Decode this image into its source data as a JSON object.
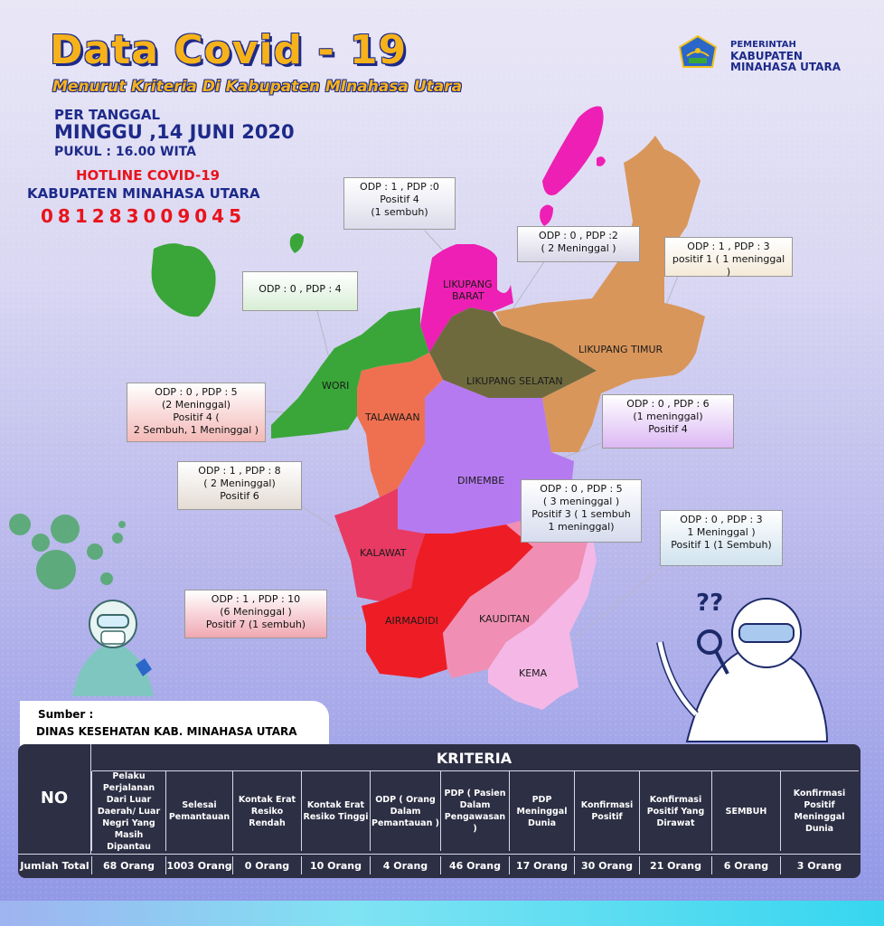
{
  "header": {
    "title": "Data Covid - 19",
    "subtitle": "Menurut Kriteria Di Kabupaten MInahasa Utara",
    "per_tanggal": "PER TANGGAL",
    "tanggal": "MINGGU ,14 JUNI 2020",
    "pukul": "PUKUL : 16.00 WITA",
    "hotline_label": "HOTLINE COVID-19",
    "hotline_org": "KABUPATEN MINAHASA UTARA",
    "hotline_number": "081283009045"
  },
  "logo": {
    "line1": "PEMERINTAH",
    "line2": "KABUPATEN",
    "line3": "MINAHASA UTARA"
  },
  "regions": [
    {
      "name": "LIKUPANG BARAT",
      "color": "#ee1fb4"
    },
    {
      "name": "LIKUPANG SELATAN",
      "color": "#6f6a3e"
    },
    {
      "name": "LIKUPANG TIMUR",
      "color": "#d9965a"
    },
    {
      "name": "WORI",
      "color": "#3aa639"
    },
    {
      "name": "TALAWAAN",
      "color": "#ef7050"
    },
    {
      "name": "DIMEMBE",
      "color": "#b67af0"
    },
    {
      "name": "KALAWAT",
      "color": "#e83a63"
    },
    {
      "name": "AIRMADIDI",
      "color": "#ee1d25"
    },
    {
      "name": "KAUDITAN",
      "color": "#f08fb3"
    },
    {
      "name": "KEMA",
      "color": "#f5b8e6"
    }
  ],
  "callouts": [
    {
      "region": "LIKUPANG BARAT",
      "lines": [
        "ODP : 1 , PDP :0",
        "Positif 4",
        "(1 sembuh)"
      ]
    },
    {
      "region": "LIKUPANG SELATAN",
      "lines": [
        "ODP : 0 , PDP :2",
        "( 2 Meninggal )"
      ]
    },
    {
      "region": "LIKUPANG TIMUR",
      "lines": [
        "ODP : 1 , PDP : 3",
        "positif 1 ( 1 meninggal )"
      ]
    },
    {
      "region": "WORI",
      "lines": [
        "ODP : 0 , PDP : 4"
      ]
    },
    {
      "region": "TALAWAAN",
      "lines": [
        "ODP : 0 , PDP : 5",
        "(2 Meninggal)",
        "Positif 4 (",
        "2 Sembuh, 1 Meninggal )"
      ]
    },
    {
      "region": "DIMEMBE",
      "lines": [
        "ODP : 0 , PDP : 6",
        "(1 meninggal)",
        "Positif 4"
      ]
    },
    {
      "region": "KALAWAT",
      "lines": [
        "ODP : 1 , PDP : 8",
        "( 2 Meninggal)",
        "Positif 6"
      ]
    },
    {
      "region": "KAUDITAN",
      "lines": [
        "ODP : 0 , PDP : 5",
        "( 3 meninggal )",
        "Positif 3 ( 1 sembuh",
        "1 meninggal)"
      ]
    },
    {
      "region": "KEMA",
      "lines": [
        "ODP : 0 , PDP : 3",
        "1 Meninggal )",
        "Positif 1 (1 Sembuh)"
      ]
    },
    {
      "region": "AIRMADIDI",
      "lines": [
        "ODP : 1 , PDP : 10",
        "(6 Meninggal )",
        "Positif 7 (1 sembuh)"
      ]
    }
  ],
  "sumber": {
    "label": "Sumber :",
    "value": "DINAS KESEHATAN KAB. MINAHASA UTARA"
  },
  "table": {
    "no_header": "NO",
    "kriteria_header": "KRITERIA",
    "row_label": "Jumlah Total",
    "columns": [
      {
        "header": "Pelaku Perjalanan Dari Luar Daerah/ Luar Negri Yang Masih Dipantau",
        "value": "68 Orang"
      },
      {
        "header": "Selesai Pemantauan",
        "value": "1003  Orang"
      },
      {
        "header": "Kontak Erat Resiko Rendah",
        "value": "0 Orang"
      },
      {
        "header": "Kontak Erat Resiko Tinggi",
        "value": "10 Orang"
      },
      {
        "header": "ODP ( Orang Dalam Pemantauan )",
        "value": "4 Orang"
      },
      {
        "header": "PDP ( Pasien Dalam Pengawasan )",
        "value": "46 Orang"
      },
      {
        "header": "PDP Meninggal Dunia",
        "value": "17 Orang"
      },
      {
        "header": "Konfirmasi Positif",
        "value": "30 Orang"
      },
      {
        "header": "Konfirmasi Positif Yang Dirawat",
        "value": "21 Orang"
      },
      {
        "header": "SEMBUH",
        "value": "6 Orang"
      },
      {
        "header": "Konfirmasi Positif Meninggal Dunia",
        "value": "3 Orang"
      }
    ]
  }
}
